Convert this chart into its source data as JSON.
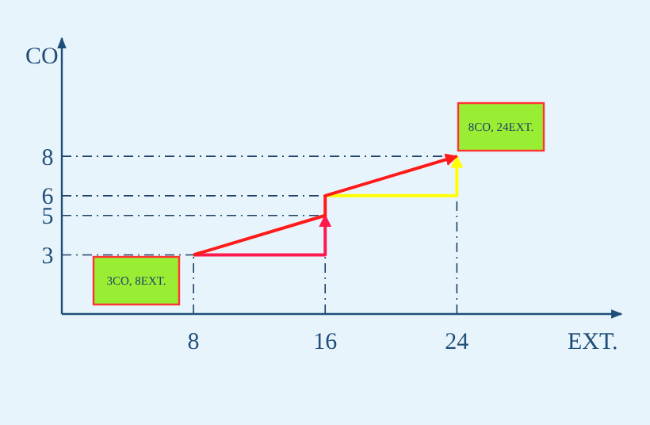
{
  "chart_data": {
    "type": "line",
    "xlabel": "EXT.",
    "ylabel": "CO",
    "xlim": [
      0,
      34
    ],
    "ylim": [
      0,
      14
    ],
    "xticks": [
      8,
      16,
      24
    ],
    "yticks": [
      3,
      5,
      6,
      8
    ],
    "grid": false,
    "marker": "none",
    "line_style": "solid",
    "series": [
      {
        "color": "#ff1a4d",
        "x": [
          8,
          16,
          16
        ],
        "values": [
          3,
          3,
          5
        ]
      },
      {
        "color": "#ffff00",
        "x": [
          16,
          24,
          24
        ],
        "values": [
          6,
          6,
          8
        ]
      },
      {
        "color": "#ff1a1a",
        "x": [
          8,
          16,
          16,
          24
        ],
        "values": [
          3,
          5,
          6,
          8
        ]
      }
    ],
    "ref_lines": [
      {
        "axis": "y",
        "value": 3,
        "line_style": "dashed",
        "color": "#1f3f66"
      },
      {
        "axis": "y",
        "value": 5,
        "line_style": "dashed",
        "color": "#1f3f66"
      },
      {
        "axis": "y",
        "value": 6,
        "line_style": "dashed",
        "color": "#1f3f66"
      },
      {
        "axis": "y",
        "value": 8,
        "line_style": "dashed",
        "color": "#1f3f66"
      },
      {
        "axis": "x",
        "value": 8,
        "line_style": "dashed",
        "color": "#1f3f66"
      },
      {
        "axis": "x",
        "value": 16,
        "line_style": "dashed",
        "color": "#1f3f66"
      },
      {
        "axis": "x",
        "value": 24,
        "line_style": "dashed",
        "color": "#1f3f66"
      }
    ],
    "annotations": [
      "3CO, 8EXT.",
      "8CO, 24EXT."
    ]
  }
}
